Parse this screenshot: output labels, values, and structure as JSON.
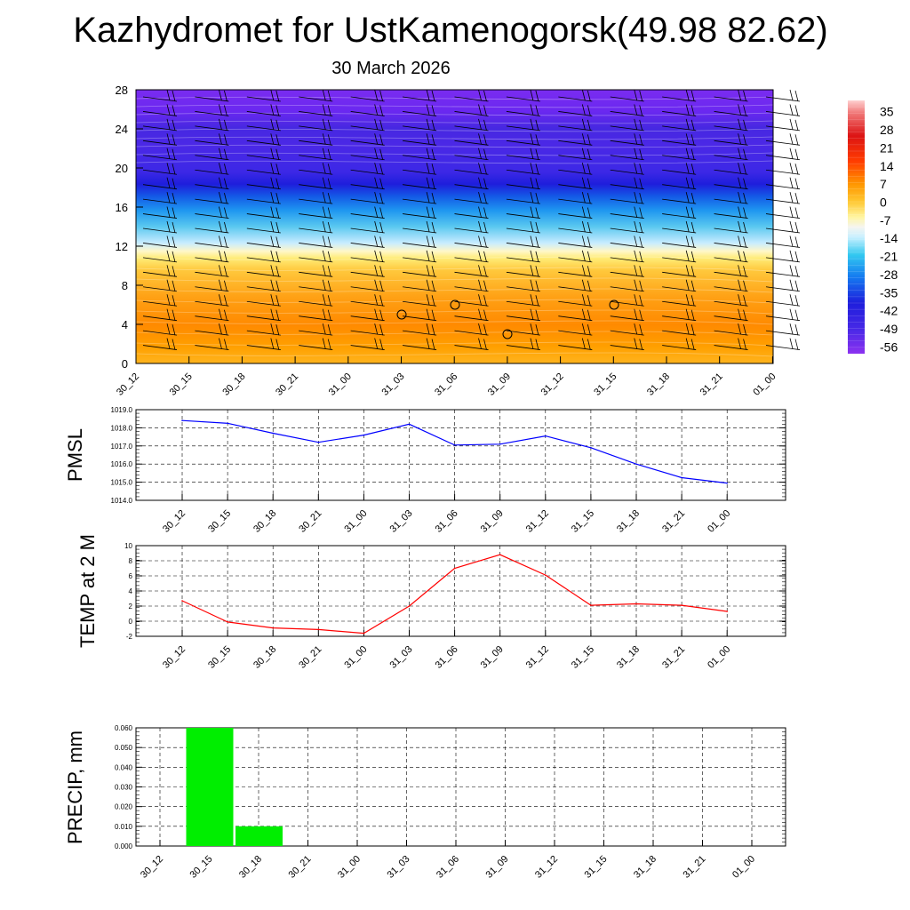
{
  "title": "Kazhydromet for UstKamenogorsk(49.98 82.62)",
  "subtitle": "30 March 2026",
  "colors": {
    "pmsl_line": "#0000ff",
    "temp_line": "#ff0000",
    "precip_bar": "#00ee00"
  },
  "chart_data": [
    {
      "type": "heatmap",
      "name": "temperature-wind cross section",
      "categories": [
        "30_12",
        "30_15",
        "30_18",
        "30_21",
        "31_00",
        "31_03",
        "31_06",
        "31_09",
        "31_12",
        "31_15",
        "31_18",
        "31_21",
        "01_00"
      ],
      "yticks": [
        "0",
        "4",
        "8",
        "12",
        "16",
        "20",
        "24",
        "28"
      ],
      "ylim": [
        0,
        28
      ],
      "colorbar_labels": [
        "35",
        "28",
        "21",
        "14",
        "7",
        "0",
        "-7",
        "-14",
        "-21",
        "-28",
        "-35",
        "-42",
        "-49",
        "-56"
      ],
      "colorbar_range": [
        -60,
        38
      ]
    },
    {
      "type": "line",
      "name": "pmsl",
      "ylabel": "PMSL",
      "categories": [
        "30_12",
        "30_15",
        "30_18",
        "30_21",
        "31_00",
        "31_03",
        "31_06",
        "31_09",
        "31_12",
        "31_15",
        "31_18",
        "31_21",
        "01_00"
      ],
      "values": [
        1018.4,
        1018.25,
        1017.7,
        1017.2,
        1017.6,
        1018.2,
        1017.05,
        1017.1,
        1017.55,
        1016.9,
        1016.0,
        1015.25,
        1014.95
      ],
      "ylim": [
        1014.0,
        1019.0
      ],
      "yticks": [
        "1014.0",
        "1015.0",
        "1016.0",
        "1017.0",
        "1018.0",
        "1019.0"
      ]
    },
    {
      "type": "line",
      "name": "temp",
      "ylabel": "TEMP at 2 M",
      "categories": [
        "30_12",
        "30_15",
        "30_18",
        "30_21",
        "31_00",
        "31_03",
        "31_06",
        "31_09",
        "31_12",
        "31_15",
        "31_18",
        "31_21",
        "01_00"
      ],
      "values": [
        2.7,
        -0.1,
        -0.9,
        -1.1,
        -1.6,
        2.0,
        7.0,
        8.8,
        6.1,
        2.1,
        2.3,
        2.1,
        1.3
      ],
      "ylim": [
        -2,
        10
      ],
      "yticks": [
        "-2",
        "0",
        "2",
        "4",
        "6",
        "8",
        "10"
      ]
    },
    {
      "type": "bar",
      "name": "precip",
      "ylabel": "PRECIP, mm",
      "categories": [
        "30_12",
        "30_15",
        "30_18",
        "30_21",
        "31_00",
        "31_03",
        "31_06",
        "31_09",
        "31_12",
        "31_15",
        "31_18",
        "31_21",
        "01_00"
      ],
      "values": [
        0,
        0.06,
        0.01,
        0,
        0,
        0,
        0,
        0,
        0,
        0,
        0,
        0,
        0
      ],
      "ylim": [
        0,
        0.06
      ],
      "yticks": [
        "0.000",
        "0.010",
        "0.020",
        "0.030",
        "0.040",
        "0.050",
        "0.060"
      ]
    }
  ]
}
